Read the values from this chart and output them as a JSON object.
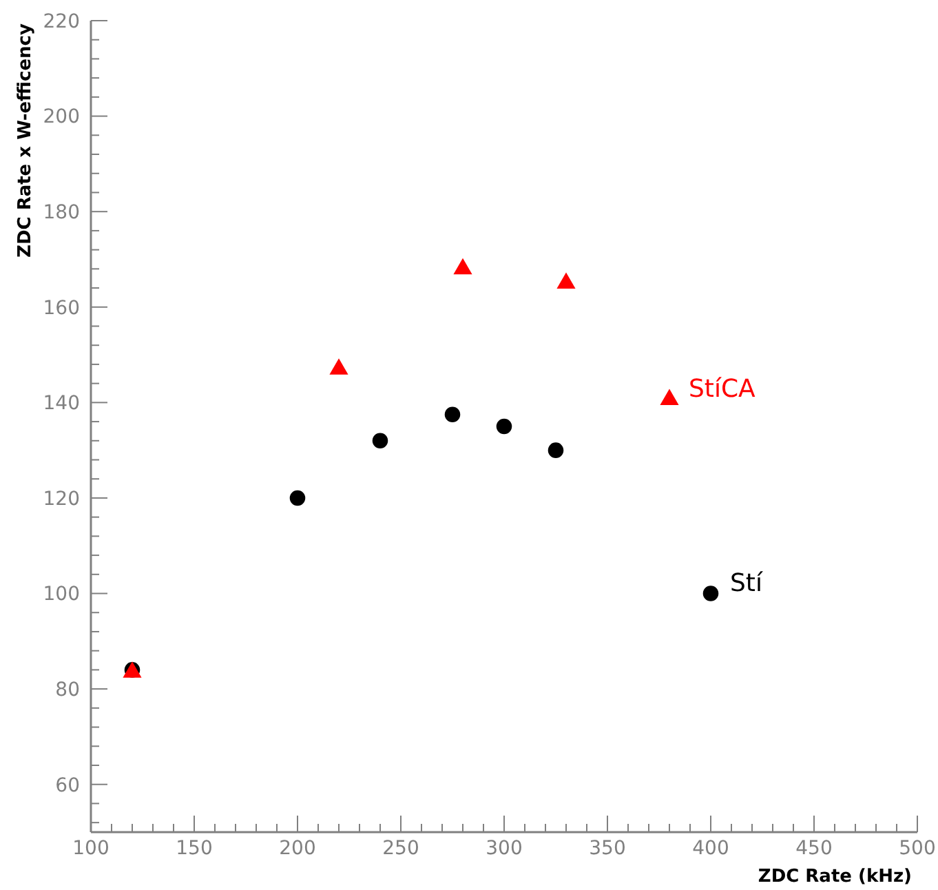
{
  "chart_data": {
    "type": "scatter",
    "xlabel": "ZDC Rate (kHz)",
    "ylabel": "ZDC Rate x W-efficency",
    "xlim": [
      100,
      500
    ],
    "ylim": [
      50,
      220
    ],
    "xticks": [
      100,
      {
        "value": 110,
        "label": null
      },
      {
        "value": 120,
        "label": null
      },
      {
        "value": 130,
        "label": null
      },
      {
        "value": 140,
        "label": null
      },
      150,
      {
        "value": 160,
        "label": null
      },
      {
        "value": 170,
        "label": null
      },
      {
        "value": 180,
        "label": null
      },
      {
        "value": 190,
        "label": null
      },
      200,
      {
        "value": 210,
        "label": null
      },
      {
        "value": 220,
        "label": null
      },
      {
        "value": 230,
        "label": null
      },
      {
        "value": 240,
        "label": null
      },
      250,
      {
        "value": 260,
        "label": null
      },
      {
        "value": 270,
        "label": null
      },
      {
        "value": 280,
        "label": null
      },
      {
        "value": 290,
        "label": null
      },
      300,
      {
        "value": 310,
        "label": null
      },
      {
        "value": 320,
        "label": null
      },
      {
        "value": 330,
        "label": null
      },
      {
        "value": 340,
        "label": null
      },
      350,
      {
        "value": 360,
        "label": null
      },
      {
        "value": 370,
        "label": null
      },
      {
        "value": 380,
        "label": null
      },
      {
        "value": 390,
        "label": null
      },
      400,
      {
        "value": 410,
        "label": null
      },
      {
        "value": 420,
        "label": null
      },
      {
        "value": 430,
        "label": null
      },
      {
        "value": 440,
        "label": null
      },
      450,
      {
        "value": 460,
        "label": null
      },
      {
        "value": 470,
        "label": null
      },
      {
        "value": 480,
        "label": null
      },
      {
        "value": 490,
        "label": null
      },
      500
    ],
    "yticks": [
      {
        "value": 52,
        "label": null
      },
      {
        "value": 56,
        "label": null
      },
      60,
      {
        "value": 64,
        "label": null
      },
      {
        "value": 68,
        "label": null
      },
      {
        "value": 72,
        "label": null
      },
      {
        "value": 76,
        "label": null
      },
      80,
      {
        "value": 84,
        "label": null
      },
      {
        "value": 88,
        "label": null
      },
      {
        "value": 92,
        "label": null
      },
      {
        "value": 96,
        "label": null
      },
      100,
      {
        "value": 104,
        "label": null
      },
      {
        "value": 108,
        "label": null
      },
      {
        "value": 112,
        "label": null
      },
      {
        "value": 116,
        "label": null
      },
      120,
      {
        "value": 124,
        "label": null
      },
      {
        "value": 128,
        "label": null
      },
      {
        "value": 132,
        "label": null
      },
      {
        "value": 136,
        "label": null
      },
      140,
      {
        "value": 144,
        "label": null
      },
      {
        "value": 148,
        "label": null
      },
      {
        "value": 152,
        "label": null
      },
      {
        "value": 156,
        "label": null
      },
      160,
      {
        "value": 164,
        "label": null
      },
      {
        "value": 168,
        "label": null
      },
      {
        "value": 172,
        "label": null
      },
      {
        "value": 176,
        "label": null
      },
      180,
      {
        "value": 184,
        "label": null
      },
      {
        "value": 188,
        "label": null
      },
      {
        "value": 192,
        "label": null
      },
      {
        "value": 196,
        "label": null
      },
      200,
      {
        "value": 204,
        "label": null
      },
      {
        "value": 208,
        "label": null
      },
      {
        "value": 212,
        "label": null
      },
      {
        "value": 216,
        "label": null
      },
      220
    ],
    "grid": false,
    "legend": false,
    "series": [
      {
        "name": "StíCA",
        "color": "#ff0000",
        "marker": "triangle",
        "x": [
          120,
          220,
          280,
          330,
          380
        ],
        "values": [
          83.5,
          147,
          168,
          165,
          140.6
        ]
      },
      {
        "name": "Stí",
        "color": "#000000",
        "marker": "circle",
        "x": [
          120,
          200,
          240,
          275,
          300,
          325,
          400
        ],
        "values": [
          84,
          120,
          132,
          137.5,
          135,
          130,
          100
        ]
      }
    ]
  }
}
